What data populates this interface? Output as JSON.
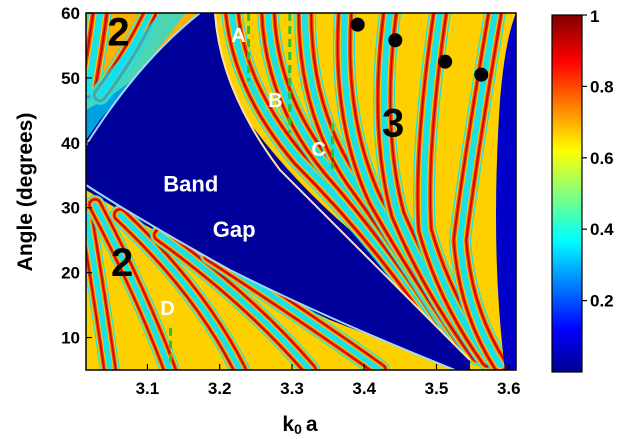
{
  "chart_data": {
    "type": "heatmap",
    "xlabel_main": "k",
    "xlabel_sub": "0",
    "xlabel_tail": "a",
    "ylabel": "Angle (degrees)",
    "xlim": [
      3.015,
      3.61
    ],
    "ylim": [
      5,
      60
    ],
    "x_ticks": [
      "3.1",
      "3.2",
      "3.3",
      "3.4",
      "3.5",
      "3.6"
    ],
    "x_tick_values": [
      3.1,
      3.2,
      3.3,
      3.4,
      3.5,
      3.6
    ],
    "y_ticks": [
      "10",
      "20",
      "30",
      "40",
      "50",
      "60"
    ],
    "y_tick_values": [
      10,
      20,
      30,
      40,
      50,
      60
    ],
    "colorbar": {
      "range": [
        0,
        1
      ],
      "ticks": [
        "0.2",
        "0.4",
        "0.6",
        "0.8",
        "1"
      ],
      "tick_values": [
        0.2,
        0.4,
        0.6,
        0.8,
        1.0
      ]
    },
    "annotations": [
      {
        "text": "Band",
        "x": 3.16,
        "y": 32.5,
        "color": "#ffffff"
      },
      {
        "text": "Gap",
        "x": 3.22,
        "y": 25.5,
        "color": "#ffffff"
      },
      {
        "text": "2",
        "x": 3.06,
        "y": 55,
        "color": "#000000"
      },
      {
        "text": "2",
        "x": 3.065,
        "y": 19.5,
        "color": "#000000"
      },
      {
        "text": "3",
        "x": 3.44,
        "y": 41,
        "color": "#000000"
      },
      {
        "text": "A",
        "x": 3.226,
        "y": 55.5,
        "color": "#ffffff"
      },
      {
        "text": "B",
        "x": 3.277,
        "y": 45.5,
        "color": "#ffffff"
      },
      {
        "text": "C",
        "x": 3.337,
        "y": 38,
        "color": "#ffffff"
      },
      {
        "text": "D",
        "x": 3.128,
        "y": 13.5,
        "color": "#ffffff"
      }
    ],
    "green_markers": [
      {
        "x": 3.24,
        "y0": 49.5,
        "y1": 60
      },
      {
        "x": 3.297,
        "y0": 41.5,
        "y1": 60
      },
      {
        "x": 3.356,
        "y0": 36,
        "y1": 43
      },
      {
        "x": 3.132,
        "y0": 6,
        "y1": 11.5
      }
    ],
    "black_dots": [
      {
        "x": 3.391,
        "y": 58.2
      },
      {
        "x": 3.443,
        "y": 55.8
      },
      {
        "x": 3.512,
        "y": 52.5
      },
      {
        "x": 3.562,
        "y": 50.5
      }
    ]
  }
}
